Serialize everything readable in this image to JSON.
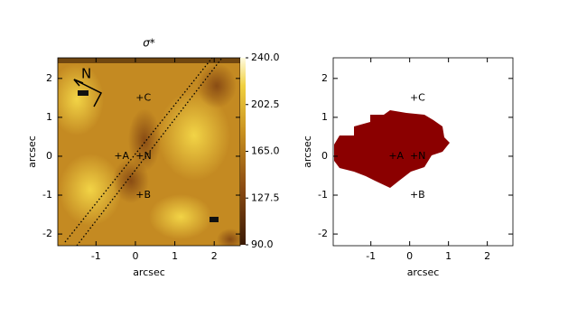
{
  "chart_data": [
    {
      "type": "heatmap",
      "title": "σ*",
      "xlabel": "arcsec",
      "ylabel": "arcsec",
      "xlim": [
        -1.97,
        2.66
      ],
      "xticks": [
        -1,
        0,
        1,
        2
      ],
      "ylim": [
        -2.3,
        2.53
      ],
      "yticks": [
        -2,
        -1,
        0,
        1,
        2
      ],
      "colorbar": {
        "lim": [
          90,
          240
        ],
        "ticks": [
          {
            "value": 240,
            "label": "240.0"
          },
          {
            "value": 202.5,
            "label": "202.5"
          },
          {
            "value": 165,
            "label": "165.0"
          },
          {
            "value": 127.5,
            "label": "127.5"
          },
          {
            "value": 90,
            "label": "90.0"
          }
        ]
      },
      "compass": "N",
      "points": [
        {
          "label": "+A",
          "x": -0.45,
          "y": 0
        },
        {
          "label": "+N",
          "x": 0.1,
          "y": 0
        },
        {
          "label": "+C",
          "x": 0.1,
          "y": 1.5
        },
        {
          "label": "+B",
          "x": 0.1,
          "y": -1
        }
      ]
    },
    {
      "type": "mask",
      "xlabel": "arcsec",
      "ylabel": "arcsec",
      "xlim": [
        -1.97,
        2.66
      ],
      "xticks": [
        -1,
        0,
        1,
        2
      ],
      "ylim": [
        -2.3,
        2.53
      ],
      "yticks": [
        -2,
        -1,
        0,
        1,
        2
      ],
      "points": [
        {
          "label": "+A",
          "x": -0.45,
          "y": 0
        },
        {
          "label": "+N",
          "x": 0.1,
          "y": 0
        },
        {
          "label": "+C",
          "x": 0.1,
          "y": 1.5
        },
        {
          "label": "+B",
          "x": 0.1,
          "y": -1
        }
      ]
    }
  ]
}
